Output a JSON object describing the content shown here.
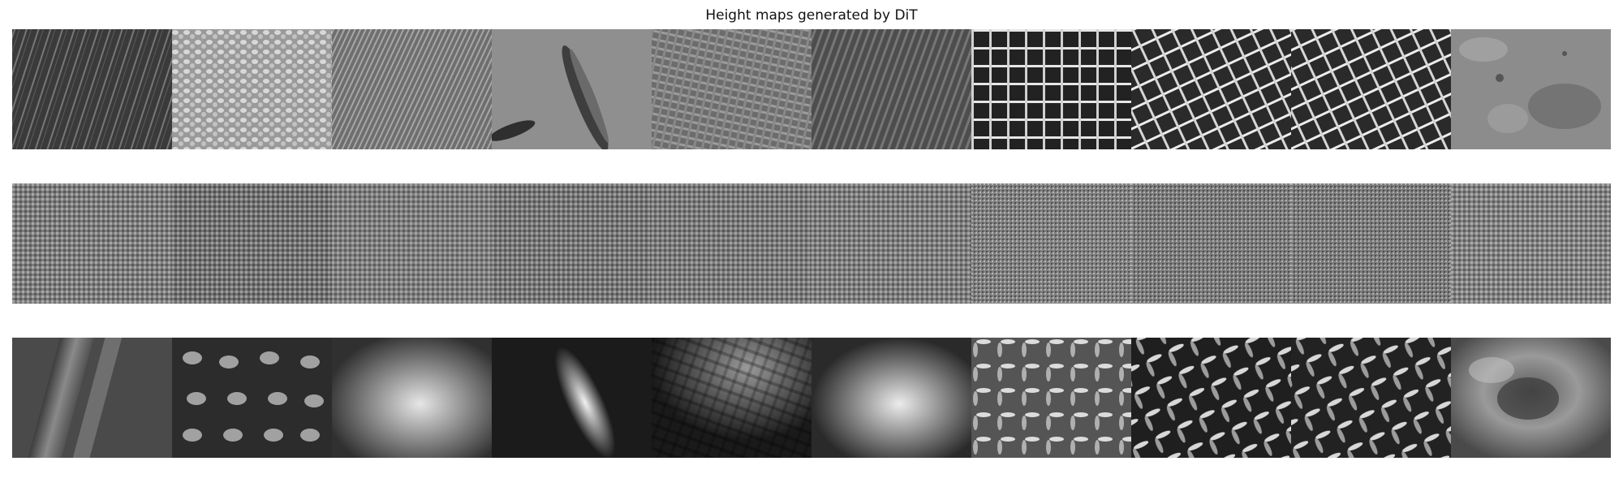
{
  "figure": {
    "title": "Height maps generated by DiT",
    "rows": [
      {
        "row": 1,
        "cells": [
          "grass-blades",
          "woven-fabric-light",
          "wood-fibers",
          "surface-with-leaf-grooves",
          "burlap-weave",
          "wood-grain-diagonal",
          "wire-mesh-grid",
          "wire-mesh-rotated",
          "wire-mesh-rotated",
          "rough-stone"
        ]
      },
      {
        "row": 2,
        "cells": [
          "noise",
          "noise",
          "noise",
          "noise",
          "noise",
          "noise",
          "noise",
          "noise",
          "noise",
          "noise"
        ]
      },
      {
        "row": 3,
        "cells": [
          "blurred-blades",
          "blurred-weave",
          "blurred-wood-glow",
          "blurred-diagonal-highlight",
          "blurred-basket-weave",
          "blurred-wood-highlight",
          "blurred-mesh",
          "blurred-mesh-dark",
          "blurred-mesh-dark",
          "blurred-stone"
        ]
      }
    ]
  }
}
